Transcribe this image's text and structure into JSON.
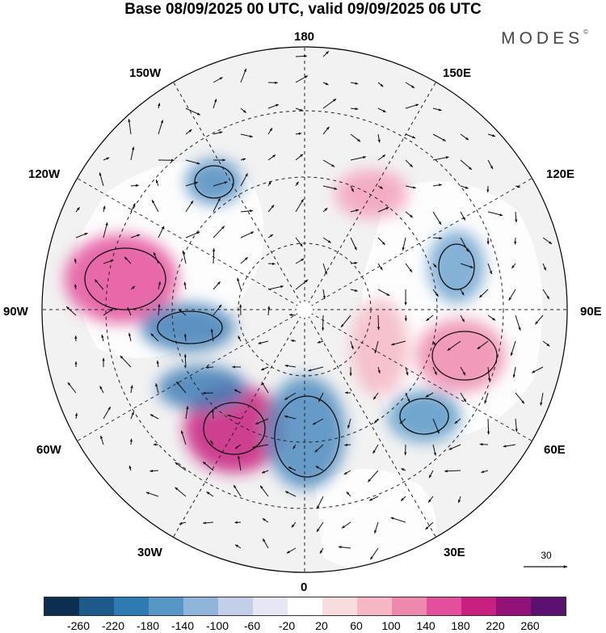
{
  "title": "Base 08/09/2025 00 UTC, valid 09/09/2025 06 UTC",
  "brand": "MODES",
  "brand_mark": "©",
  "lon_labels": {
    "lon_180": "180",
    "lon_150e": "150E",
    "lon_120e": "120E",
    "lon_90e": "90E",
    "lon_60e": "60E",
    "lon_30e": "30E",
    "lon_0": "0",
    "lon_30w": "30W",
    "lon_60w": "60W",
    "lon_90w": "90W",
    "lon_120w": "120W",
    "lon_150w": "150W"
  },
  "reference_vector": "30",
  "colorbar": {
    "colors": [
      "#0d2f4f",
      "#1d5a8a",
      "#2e7ab3",
      "#5797c6",
      "#8fb6da",
      "#c3cfe8",
      "#e6e6f4",
      "#ffffff",
      "#f9dcdc",
      "#f4b7c3",
      "#ef88ad",
      "#e34f9b",
      "#c8207f",
      "#93127a",
      "#5a1170"
    ],
    "labels": [
      "-260",
      "-220",
      "-180",
      "-140",
      "-100",
      "-60",
      "-20",
      "20",
      "60",
      "100",
      "140",
      "180",
      "220",
      "260"
    ]
  },
  "anomalies": [
    {
      "name": "anomaly-pos-baffin-alaska",
      "value": 160,
      "color": "#e34f9b"
    },
    {
      "name": "anomaly-pos-north-atlantic",
      "value": 230,
      "color": "#c8207f"
    },
    {
      "name": "anomaly-neg-europe",
      "value": -150,
      "color": "#4f8cbf"
    },
    {
      "name": "anomaly-neg-labrador",
      "value": -170,
      "color": "#3e7fb7"
    },
    {
      "name": "anomaly-neg-hudson",
      "value": -160,
      "color": "#3e7fb7"
    },
    {
      "name": "anomaly-pos-siberia",
      "value": 130,
      "color": "#ef88ad"
    },
    {
      "name": "anomaly-neg-central-asia",
      "value": -130,
      "color": "#5797c6"
    },
    {
      "name": "anomaly-neg-east-asia",
      "value": -110,
      "color": "#6fa3cf"
    },
    {
      "name": "anomaly-pos-east-siberia",
      "value": 110,
      "color": "#f4a0bb"
    },
    {
      "name": "anomaly-neg-bering",
      "value": -140,
      "color": "#4f8cbf"
    },
    {
      "name": "anomaly-pos-scandinavia",
      "value": 90,
      "color": "#f4b7c3"
    }
  ]
}
